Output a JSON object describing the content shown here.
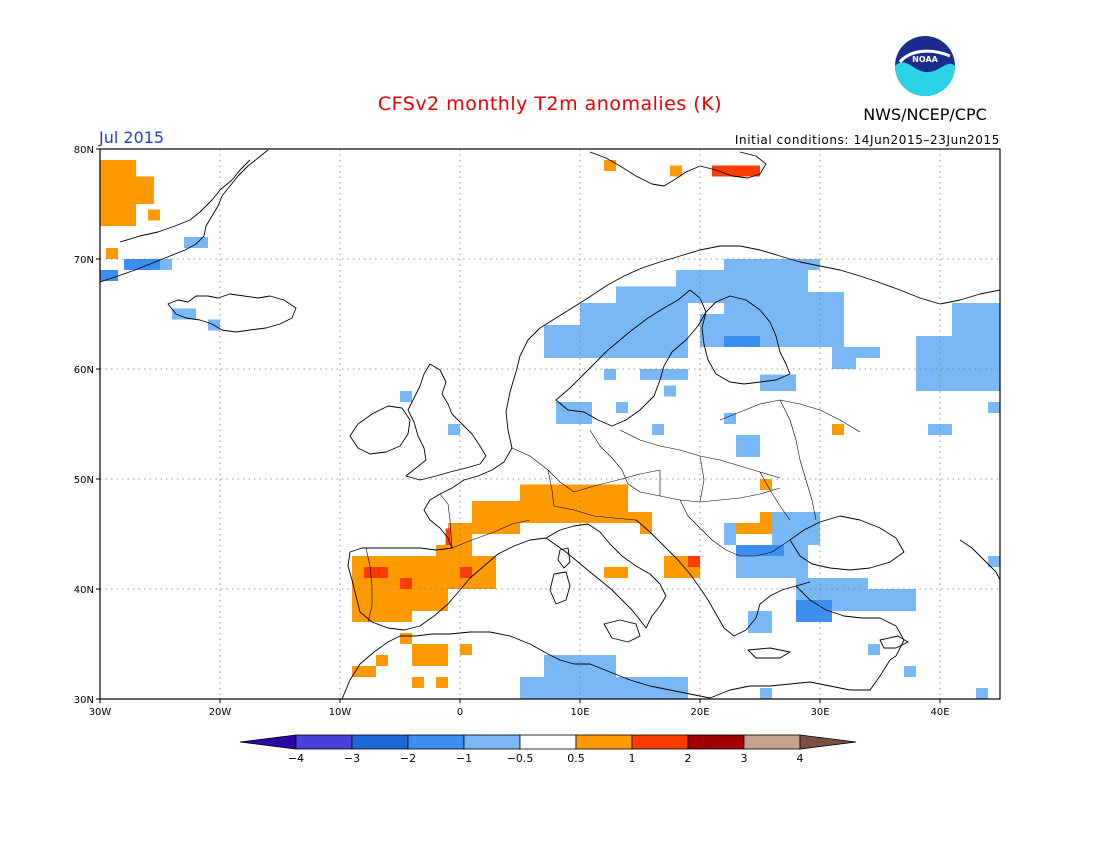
{
  "title": "CFSv2 monthly T2m anomalies (K)",
  "agency": "NWS/NCEP/CPC",
  "logo_text": "NOAA",
  "month_label": "Jul 2015",
  "initial_conditions": "Initial conditions: 14Jun2015–23Jun2015",
  "map": {
    "lon_range": [
      -30,
      45
    ],
    "lat_range": [
      30,
      80
    ],
    "lon_ticks": [
      {
        "lon": -30,
        "label": "30W"
      },
      {
        "lon": -20,
        "label": "20W"
      },
      {
        "lon": -10,
        "label": "10W"
      },
      {
        "lon": 0,
        "label": "0"
      },
      {
        "lon": 10,
        "label": "10E"
      },
      {
        "lon": 20,
        "label": "20E"
      },
      {
        "lon": 30,
        "label": "30E"
      },
      {
        "lon": 40,
        "label": "40E"
      }
    ],
    "lat_ticks": [
      {
        "lat": 30,
        "label": "30N"
      },
      {
        "lat": 40,
        "label": "40N"
      },
      {
        "lat": 50,
        "label": "50N"
      },
      {
        "lat": 60,
        "label": "60N"
      },
      {
        "lat": 70,
        "label": "70N"
      },
      {
        "lat": 80,
        "label": "80N"
      }
    ],
    "grid_lon": [
      -20,
      -10,
      0,
      10,
      20,
      30,
      40
    ],
    "grid_lat": [
      40,
      50,
      60,
      70
    ]
  },
  "colorbar": {
    "colors": [
      "#2a08a8",
      "#4a3fd6",
      "#1f68d8",
      "#3c8ff0",
      "#7ab8f5",
      "#ffffff",
      "#ff9a00",
      "#ff3c00",
      "#a00000",
      "#c8a090",
      "#7a5040"
    ],
    "labels": [
      "−4",
      "−3",
      "−2",
      "−1",
      "−0.5",
      "0.5",
      "1",
      "2",
      "3",
      "4"
    ]
  },
  "anomaly_cells": [
    {
      "value": 0.7,
      "lon": [
        -30,
        -27
      ],
      "lat": [
        73,
        79
      ]
    },
    {
      "value": 0.7,
      "lon": [
        -27,
        -25.5
      ],
      "lat": [
        75,
        77.5
      ]
    },
    {
      "value": 0.7,
      "lon": [
        -26,
        -25
      ],
      "lat": [
        73.5,
        74.5
      ]
    },
    {
      "value": -0.7,
      "lon": [
        -23,
        -21
      ],
      "lat": [
        71,
        72
      ]
    },
    {
      "value": -1.5,
      "lon": [
        -28,
        -25
      ],
      "lat": [
        69,
        70
      ]
    },
    {
      "value": -0.7,
      "lon": [
        -25,
        -24
      ],
      "lat": [
        69,
        70
      ]
    },
    {
      "value": -2.0,
      "lon": [
        -30,
        -28.5
      ],
      "lat": [
        68,
        69
      ]
    },
    {
      "value": 0.7,
      "lon": [
        -29.5,
        -28.5
      ],
      "lat": [
        70,
        71
      ]
    },
    {
      "value": -0.7,
      "lon": [
        -24,
        -22
      ],
      "lat": [
        64.5,
        65.5
      ]
    },
    {
      "value": -0.7,
      "lon": [
        -21,
        -20
      ],
      "lat": [
        63.5,
        64.5
      ]
    },
    {
      "value": 0.7,
      "lon": [
        12,
        13
      ],
      "lat": [
        78,
        79
      ]
    },
    {
      "value": 0.7,
      "lon": [
        17.5,
        18.5
      ],
      "lat": [
        77.5,
        78.5
      ]
    },
    {
      "value": 1.5,
      "lon": [
        21,
        25
      ],
      "lat": [
        77.5,
        78.5
      ]
    },
    {
      "value": -0.7,
      "lon": [
        7,
        19
      ],
      "lat": [
        61,
        64
      ]
    },
    {
      "value": -0.7,
      "lon": [
        10,
        19
      ],
      "lat": [
        64,
        66
      ]
    },
    {
      "value": -0.7,
      "lon": [
        13,
        22
      ],
      "lat": [
        66,
        67.5
      ]
    },
    {
      "value": -0.7,
      "lon": [
        18,
        29
      ],
      "lat": [
        67.5,
        69
      ]
    },
    {
      "value": -0.7,
      "lon": [
        22,
        30
      ],
      "lat": [
        69,
        70
      ]
    },
    {
      "value": -0.7,
      "lon": [
        22,
        29
      ],
      "lat": [
        65,
        67.5
      ]
    },
    {
      "value": -0.7,
      "lon": [
        20,
        27
      ],
      "lat": [
        62,
        65
      ]
    },
    {
      "value": -1.5,
      "lon": [
        22,
        25
      ],
      "lat": [
        62,
        63
      ]
    },
    {
      "value": -0.7,
      "lon": [
        27,
        32
      ],
      "lat": [
        62,
        67
      ]
    },
    {
      "value": -0.7,
      "lon": [
        31,
        33
      ],
      "lat": [
        60,
        62
      ]
    },
    {
      "value": -0.7,
      "lon": [
        33,
        35
      ],
      "lat": [
        61,
        62
      ]
    },
    {
      "value": -0.7,
      "lon": [
        38,
        45
      ],
      "lat": [
        58,
        63
      ]
    },
    {
      "value": -0.7,
      "lon": [
        41,
        45
      ],
      "lat": [
        63,
        66
      ]
    },
    {
      "value": -0.7,
      "lon": [
        44,
        45
      ],
      "lat": [
        56,
        57
      ]
    },
    {
      "value": -0.7,
      "lon": [
        25,
        28
      ],
      "lat": [
        58,
        59.5
      ]
    },
    {
      "value": -0.7,
      "lon": [
        15,
        19
      ],
      "lat": [
        59,
        60
      ]
    },
    {
      "value": -0.7,
      "lon": [
        12,
        13
      ],
      "lat": [
        59,
        60
      ]
    },
    {
      "value": -0.7,
      "lon": [
        8,
        11
      ],
      "lat": [
        55,
        57
      ]
    },
    {
      "value": -0.7,
      "lon": [
        13,
        14
      ],
      "lat": [
        56,
        57
      ]
    },
    {
      "value": -0.7,
      "lon": [
        17,
        18
      ],
      "lat": [
        57.5,
        58.5
      ]
    },
    {
      "value": -0.7,
      "lon": [
        22,
        23
      ],
      "lat": [
        55,
        56
      ]
    },
    {
      "value": -0.7,
      "lon": [
        23,
        25
      ],
      "lat": [
        52,
        54
      ]
    },
    {
      "value": -0.7,
      "lon": [
        16,
        17
      ],
      "lat": [
        54,
        55
      ]
    },
    {
      "value": -0.7,
      "lon": [
        -1,
        0
      ],
      "lat": [
        54,
        55
      ]
    },
    {
      "value": -0.7,
      "lon": [
        -5,
        -4
      ],
      "lat": [
        57,
        58
      ]
    },
    {
      "value": -0.7,
      "lon": [
        39,
        41
      ],
      "lat": [
        54,
        55
      ]
    },
    {
      "value": 0.7,
      "lon": [
        31,
        32
      ],
      "lat": [
        54,
        55
      ]
    },
    {
      "value": 0.7,
      "lon": [
        25,
        26
      ],
      "lat": [
        49,
        50
      ]
    },
    {
      "value": 0.7,
      "lon": [
        5,
        14
      ],
      "lat": [
        46,
        49.5
      ]
    },
    {
      "value": 0.7,
      "lon": [
        1,
        5
      ],
      "lat": [
        45,
        48
      ]
    },
    {
      "value": 0.7,
      "lon": [
        -1,
        1
      ],
      "lat": [
        44,
        46
      ]
    },
    {
      "value": 0.7,
      "lon": [
        -2,
        1
      ],
      "lat": [
        43,
        44
      ]
    },
    {
      "value": 0.7,
      "lon": [
        14,
        15
      ],
      "lat": [
        46,
        47
      ]
    },
    {
      "value": 0.7,
      "lon": [
        15,
        16
      ],
      "lat": [
        45,
        47
      ]
    },
    {
      "value": 1.5,
      "lon": [
        -1.2,
        -0.8
      ],
      "lat": [
        44,
        45.5
      ]
    },
    {
      "value": 0.7,
      "lon": [
        -9,
        3
      ],
      "lat": [
        40,
        43
      ]
    },
    {
      "value": 0.7,
      "lon": [
        -9,
        -1
      ],
      "lat": [
        38,
        40
      ]
    },
    {
      "value": 0.7,
      "lon": [
        -9,
        -4
      ],
      "lat": [
        37,
        38
      ]
    },
    {
      "value": 1.5,
      "lon": [
        -8,
        -6
      ],
      "lat": [
        41,
        42
      ]
    },
    {
      "value": 1.5,
      "lon": [
        -5,
        -4
      ],
      "lat": [
        40,
        41
      ]
    },
    {
      "value": 1.5,
      "lon": [
        0,
        1
      ],
      "lat": [
        41,
        42
      ]
    },
    {
      "value": 0.7,
      "lon": [
        17,
        20
      ],
      "lat": [
        41,
        43
      ]
    },
    {
      "value": 1.5,
      "lon": [
        19,
        20
      ],
      "lat": [
        42,
        43
      ]
    },
    {
      "value": 0.7,
      "lon": [
        22,
        27
      ],
      "lat": [
        45,
        46
      ]
    },
    {
      "value": 0.7,
      "lon": [
        25,
        27
      ],
      "lat": [
        46,
        47
      ]
    },
    {
      "value": 0.7,
      "lon": [
        12,
        14
      ],
      "lat": [
        41,
        42
      ]
    },
    {
      "value": -0.7,
      "lon": [
        23,
        29
      ],
      "lat": [
        41,
        44
      ]
    },
    {
      "value": -0.7,
      "lon": [
        26,
        30
      ],
      "lat": [
        44,
        47
      ]
    },
    {
      "value": -1.5,
      "lon": [
        23,
        27
      ],
      "lat": [
        43,
        44
      ]
    },
    {
      "value": -0.7,
      "lon": [
        22,
        23
      ],
      "lat": [
        44,
        46
      ]
    },
    {
      "value": -0.7,
      "lon": [
        28,
        34
      ],
      "lat": [
        38,
        41
      ]
    },
    {
      "value": -1.5,
      "lon": [
        28,
        31
      ],
      "lat": [
        37,
        39
      ]
    },
    {
      "value": -0.7,
      "lon": [
        34,
        38
      ],
      "lat": [
        38,
        40
      ]
    },
    {
      "value": -0.7,
      "lon": [
        24,
        26
      ],
      "lat": [
        36,
        38
      ]
    },
    {
      "value": -0.7,
      "lon": [
        5,
        19
      ],
      "lat": [
        30,
        32
      ]
    },
    {
      "value": -0.7,
      "lon": [
        7,
        13
      ],
      "lat": [
        32,
        34
      ]
    },
    {
      "value": -0.7,
      "lon": [
        25,
        26
      ],
      "lat": [
        30,
        31
      ]
    },
    {
      "value": -0.7,
      "lon": [
        34,
        35
      ],
      "lat": [
        34,
        35
      ]
    },
    {
      "value": -0.7,
      "lon": [
        37,
        38
      ],
      "lat": [
        32,
        33
      ]
    },
    {
      "value": -0.7,
      "lon": [
        43,
        44
      ],
      "lat": [
        30,
        31
      ]
    },
    {
      "value": -0.7,
      "lon": [
        44,
        45
      ],
      "lat": [
        42,
        43
      ]
    },
    {
      "value": 0.7,
      "lon": [
        -9,
        -7
      ],
      "lat": [
        32,
        33
      ]
    },
    {
      "value": 0.7,
      "lon": [
        -4,
        -1
      ],
      "lat": [
        33,
        35
      ]
    },
    {
      "value": 0.7,
      "lon": [
        -2,
        -1
      ],
      "lat": [
        33,
        34
      ]
    },
    {
      "value": 0.7,
      "lon": [
        -5,
        -4
      ],
      "lat": [
        35,
        36
      ]
    },
    {
      "value": 0.7,
      "lon": [
        0,
        1
      ],
      "lat": [
        34,
        35
      ]
    },
    {
      "value": 0.7,
      "lon": [
        -2,
        -1
      ],
      "lat": [
        31,
        32
      ]
    },
    {
      "value": 0.7,
      "lon": [
        -7,
        -6
      ],
      "lat": [
        33,
        34
      ]
    },
    {
      "value": 0.7,
      "lon": [
        -4,
        -3
      ],
      "lat": [
        31,
        32
      ]
    }
  ]
}
